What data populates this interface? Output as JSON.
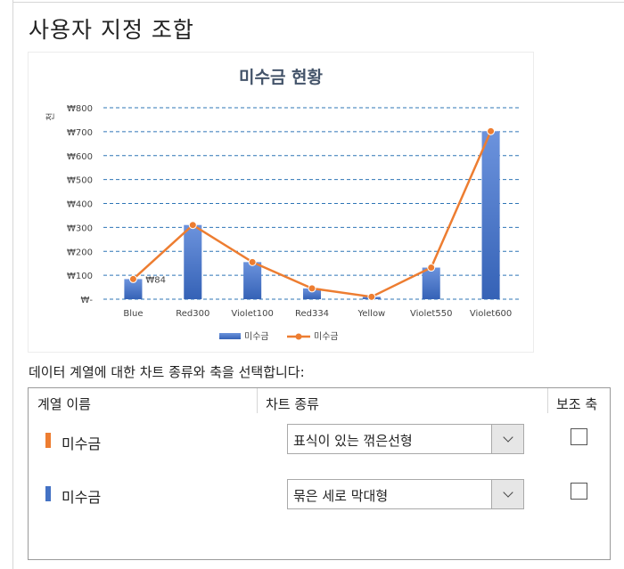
{
  "page_title": "사용자 지정 조합",
  "chart_data": {
    "type": "bar",
    "title": "미수금 현황",
    "ylabel": "천",
    "categories": [
      "Blue",
      "Red300",
      "Violet100",
      "Red334",
      "Yellow",
      "Violet550",
      "Violet600"
    ],
    "ylim": [
      0,
      800
    ],
    "y_ticks": [
      "₩-",
      "₩100",
      "₩200",
      "₩300",
      "₩400",
      "₩500",
      "₩600",
      "₩700",
      "₩800"
    ],
    "y_tick_values": [
      0,
      100,
      200,
      300,
      400,
      500,
      600,
      700,
      800
    ],
    "grid": true,
    "legend_position": "bottom",
    "series": [
      {
        "name": "미수금",
        "kind": "bar",
        "color": "#4472c4",
        "values": [
          84,
          310,
          155,
          45,
          10,
          132,
          702
        ]
      },
      {
        "name": "미수금",
        "kind": "line",
        "color": "#ed7d31",
        "values": [
          84,
          310,
          155,
          45,
          10,
          132,
          702
        ]
      }
    ],
    "data_labels": [
      {
        "category": "Blue",
        "text": "₩84"
      }
    ]
  },
  "prompt": "데이터 계열에 대한 차트 종류와 축을 선택합니다:",
  "table": {
    "headers": {
      "series_name": "계열 이름",
      "chart_type": "차트 종류",
      "secondary_axis": "보조 축"
    },
    "rows": [
      {
        "name": "미수금",
        "swatch_color": "#ed7d31",
        "chart_type": "표식이 있는 꺾은선형",
        "secondary_checked": false
      },
      {
        "name": "미수금",
        "swatch_color": "#4472c4",
        "chart_type": "묶은 세로 막대형",
        "secondary_checked": false
      }
    ]
  }
}
